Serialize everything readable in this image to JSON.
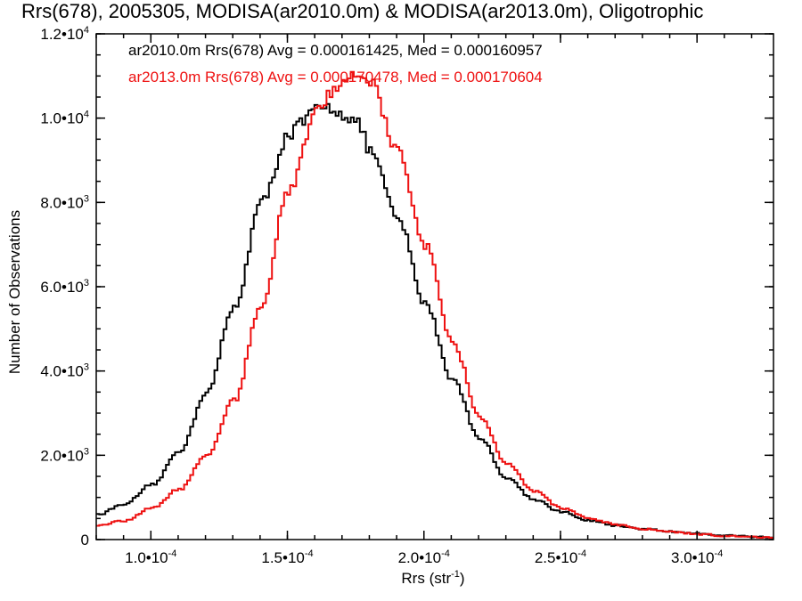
{
  "chart_data": {
    "type": "histogram",
    "title": "Rrs(678), 2005305, MODISA(ar2010.0m) & MODISA(ar2013.0m), Oligotrophic",
    "xlabel": "Rrs (str",
    "xlabel_sup": "-1",
    "xlabel_end": ")",
    "ylabel": "Number of Observations",
    "xlim": [
      8e-05,
      0.000328
    ],
    "ylim": [
      0,
      12000
    ],
    "x_ticks": [
      {
        "value": 0.0001,
        "mant": "1.0•10",
        "exp": "-4"
      },
      {
        "value": 0.00015,
        "mant": "1.5•10",
        "exp": "-4"
      },
      {
        "value": 0.0002,
        "mant": "2.0•10",
        "exp": "-4"
      },
      {
        "value": 0.00025,
        "mant": "2.5•10",
        "exp": "-4"
      },
      {
        "value": 0.0003,
        "mant": "3.0•10",
        "exp": "-4"
      }
    ],
    "y_ticks": [
      {
        "value": 0,
        "mant": "0",
        "exp": ""
      },
      {
        "value": 2000,
        "mant": "2.0•10",
        "exp": "3"
      },
      {
        "value": 4000,
        "mant": "4.0•10",
        "exp": "3"
      },
      {
        "value": 6000,
        "mant": "6.0•10",
        "exp": "3"
      },
      {
        "value": 8000,
        "mant": "8.0•10",
        "exp": "3"
      },
      {
        "value": 10000,
        "mant": "1.0•10",
        "exp": "4"
      },
      {
        "value": 12000,
        "mant": "1.2•10",
        "exp": "4"
      }
    ],
    "grid": false,
    "legend_position": "top-left",
    "series": [
      {
        "legend": "ar2010.0m Rrs(678) Avg = 0.000161425, Med = 0.000160957",
        "color": "#000000",
        "x": [
          8e-05,
          9e-05,
          0.0001,
          0.00011,
          0.00012,
          0.00013,
          0.00014,
          0.00015,
          0.000155,
          0.00016,
          0.000165,
          0.00017,
          0.000175,
          0.00018,
          0.00019,
          0.0002,
          0.00021,
          0.00022,
          0.00023,
          0.00024,
          0.00025,
          0.00026,
          0.00027,
          0.00028,
          0.00029,
          0.0003,
          0.00031,
          0.00032,
          0.000328
        ],
        "y": [
          600,
          850,
          1300,
          2100,
          3500,
          5500,
          8000,
          9600,
          9900,
          10200,
          10250,
          10100,
          9900,
          9200,
          7600,
          5600,
          3800,
          2400,
          1450,
          950,
          650,
          450,
          330,
          250,
          190,
          140,
          100,
          70,
          50
        ]
      },
      {
        "legend": "ar2013.0m Rrs(678) Avg = 0.000170478, Med = 0.000170604",
        "color": "#ee1111",
        "x": [
          8e-05,
          9e-05,
          0.0001,
          0.00011,
          0.00012,
          0.00013,
          0.00014,
          0.00015,
          0.00016,
          0.000165,
          0.00017,
          0.000175,
          0.00018,
          0.00019,
          0.0002,
          0.00021,
          0.00022,
          0.00023,
          0.00024,
          0.00025,
          0.00026,
          0.00027,
          0.00028,
          0.00029,
          0.0003,
          0.00031,
          0.00032,
          0.000328
        ],
        "y": [
          350,
          450,
          750,
          1200,
          2000,
          3300,
          5600,
          8300,
          10100,
          10600,
          10900,
          11000,
          10800,
          9200,
          7000,
          4700,
          2900,
          1800,
          1150,
          750,
          500,
          350,
          250,
          180,
          130,
          90,
          60,
          40
        ]
      }
    ]
  }
}
